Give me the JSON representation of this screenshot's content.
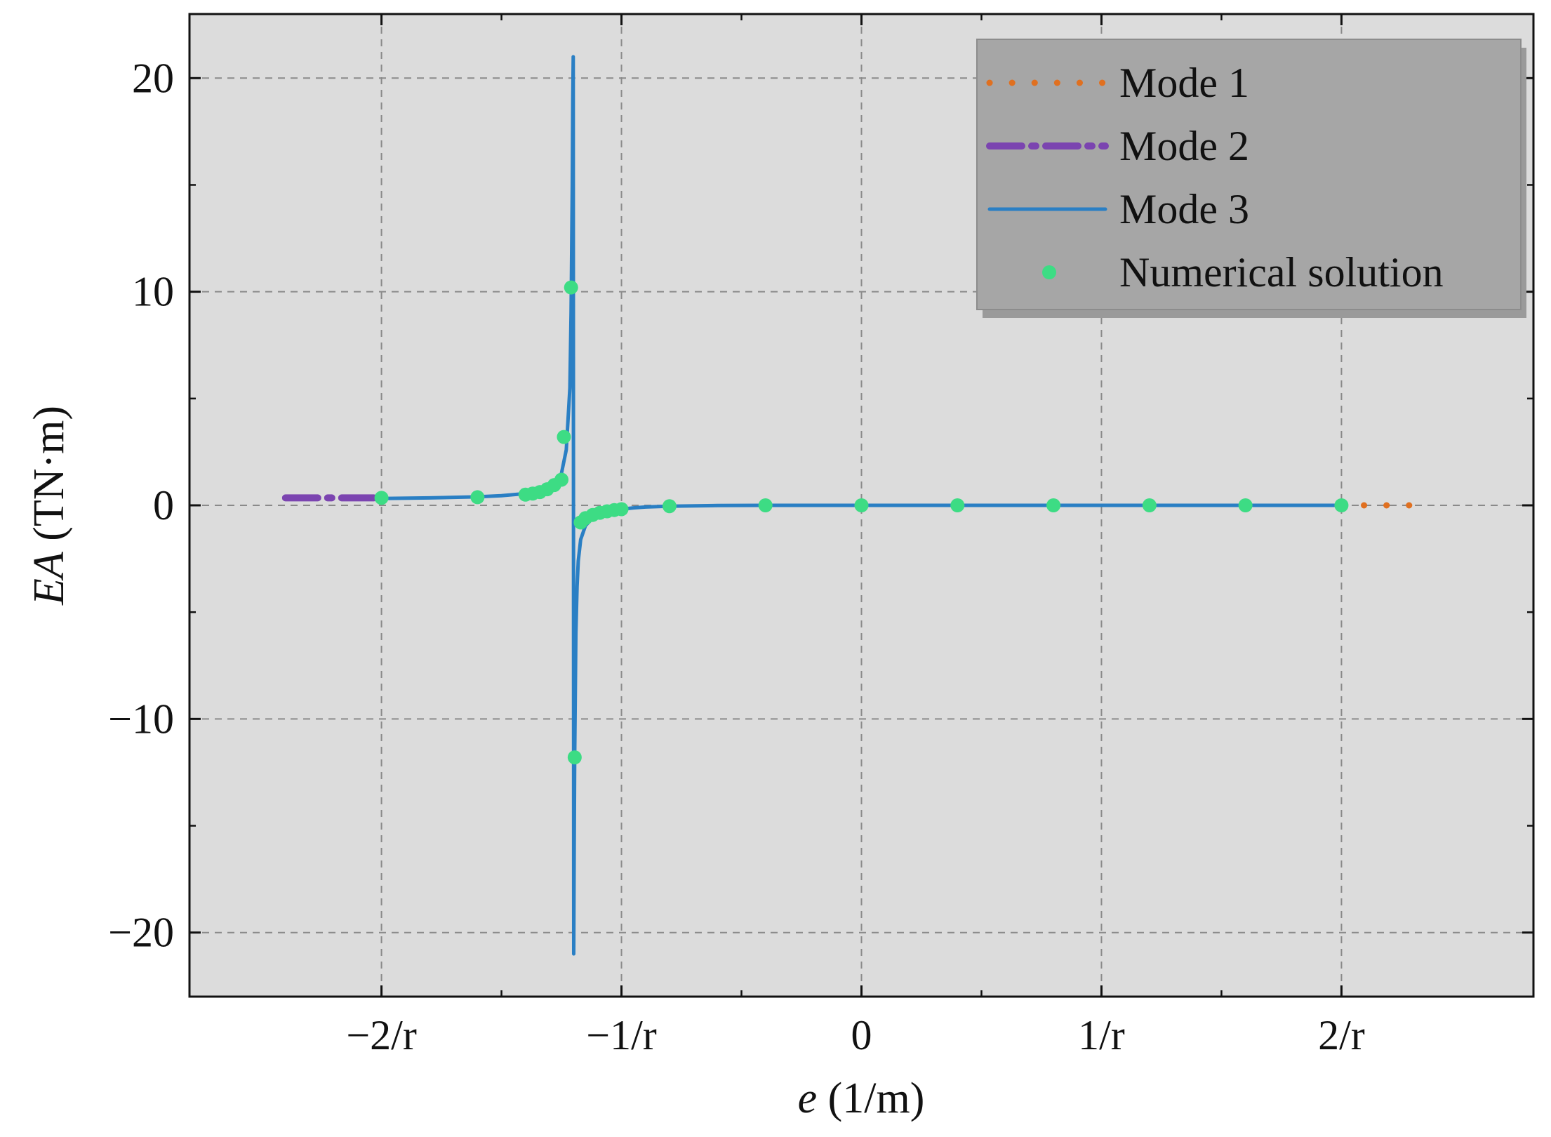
{
  "chart_data": {
    "type": "line",
    "xlabel_italic": "e",
    "xlabel_unit": " (1/m)",
    "ylabel_italic": "EA",
    "ylabel_unit": " (TN·m)",
    "xlim": [
      -2.8,
      2.8
    ],
    "ylim": [
      -23,
      23
    ],
    "x_ticks": [
      {
        "value": -2,
        "label": "−2/r"
      },
      {
        "value": -1,
        "label": "−1/r"
      },
      {
        "value": 0,
        "label": "0"
      },
      {
        "value": 1,
        "label": "1/r"
      },
      {
        "value": 2,
        "label": "2/r"
      }
    ],
    "y_ticks": [
      {
        "value": 20,
        "label": "20"
      },
      {
        "value": 10,
        "label": "10"
      },
      {
        "value": 0,
        "label": "0"
      },
      {
        "value": -10,
        "label": "−10"
      },
      {
        "value": -20,
        "label": "−20"
      }
    ],
    "grid": true,
    "legend_position": "top-right",
    "pole_x": -1.2,
    "series": [
      {
        "name": "Mode 1",
        "style": "dotted",
        "color": "#e07020",
        "x": [
          2.0,
          2.05,
          2.1,
          2.15,
          2.2,
          2.25,
          2.3,
          2.35
        ],
        "y": [
          0,
          0,
          0,
          0,
          0,
          0,
          0,
          0
        ]
      },
      {
        "name": "Mode 2",
        "style": "dashdot",
        "color": "#7b44b0",
        "x": [
          -2.4,
          -2.3,
          -2.2,
          -2.1,
          -2.0
        ],
        "y": [
          0.35,
          0.35,
          0.35,
          0.35,
          0.35
        ]
      },
      {
        "name": "Mode 3",
        "style": "solid",
        "color": "#2a7fc4",
        "x": [
          -2.0,
          -1.8,
          -1.6,
          -1.5,
          -1.4,
          -1.35,
          -1.3,
          -1.27,
          -1.25,
          -1.23,
          -1.215,
          -1.21,
          -1.205,
          -1.203,
          -1.201,
          -1.199,
          -1.197,
          -1.195,
          -1.19,
          -1.185,
          -1.18,
          -1.17,
          -1.15,
          -1.12,
          -1.1,
          -1.05,
          -1.0,
          -0.95,
          -0.9,
          -0.8,
          -0.6,
          -0.4,
          0,
          0.4,
          0.8,
          1.2,
          1.6,
          2.0
        ],
        "y": [
          0.32,
          0.35,
          0.4,
          0.45,
          0.55,
          0.65,
          0.85,
          1.1,
          1.5,
          2.6,
          5.5,
          9.0,
          15.0,
          19.0,
          21.0,
          -21.0,
          -16.0,
          -11.8,
          -6.0,
          -3.8,
          -2.6,
          -1.6,
          -0.95,
          -0.6,
          -0.45,
          -0.28,
          -0.18,
          -0.12,
          -0.08,
          -0.04,
          -0.01,
          0,
          0,
          0,
          0,
          0,
          0,
          0
        ]
      },
      {
        "name": "Numerical solution",
        "style": "markers",
        "color": "#3ddc84",
        "x": [
          -2.0,
          -1.6,
          -1.4,
          -1.37,
          -1.34,
          -1.31,
          -1.28,
          -1.25,
          -1.24,
          -1.21,
          -1.195,
          -1.17,
          -1.15,
          -1.12,
          -1.09,
          -1.06,
          -1.03,
          -1.0,
          -0.8,
          -0.4,
          0,
          0.4,
          0.8,
          1.2,
          1.6,
          2.0
        ],
        "y": [
          0.35,
          0.38,
          0.5,
          0.55,
          0.62,
          0.75,
          0.95,
          1.2,
          3.2,
          10.2,
          -11.8,
          -0.8,
          -0.6,
          -0.45,
          -0.35,
          -0.28,
          -0.22,
          -0.18,
          -0.04,
          0,
          0,
          0,
          0,
          0,
          0,
          0
        ]
      }
    ]
  }
}
